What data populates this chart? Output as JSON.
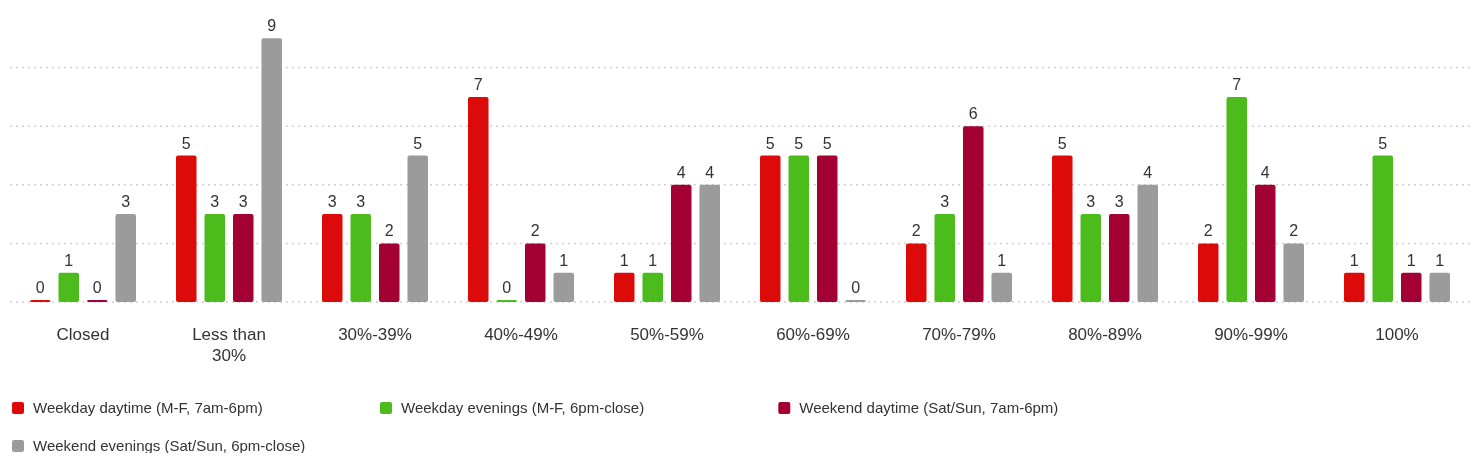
{
  "chart_data": {
    "type": "bar",
    "categories": [
      "Closed",
      "Less than 30%",
      "30%-39%",
      "40%-49%",
      "50%-59%",
      "60%-69%",
      "70%-79%",
      "80%-89%",
      "90%-99%",
      "100%"
    ],
    "series": [
      {
        "name": "Weekday daytime (M-F, 7am-6pm)",
        "color": "#dd0a0a",
        "values": [
          0,
          5,
          3,
          7,
          1,
          5,
          2,
          5,
          2,
          1
        ]
      },
      {
        "name": "Weekday evenings (M-F, 6pm-close)",
        "color": "#4cbc1c",
        "values": [
          1,
          3,
          3,
          0,
          1,
          5,
          3,
          3,
          7,
          5
        ]
      },
      {
        "name": "Weekend daytime (Sat/Sun, 7am-6pm)",
        "color": "#a30034",
        "values": [
          0,
          3,
          2,
          2,
          4,
          5,
          6,
          3,
          4,
          1
        ]
      },
      {
        "name": "Weekend evenings (Sat/Sun, 6pm-close)",
        "color": "#9b9b9b",
        "values": [
          3,
          9,
          5,
          1,
          4,
          0,
          1,
          4,
          2,
          1
        ]
      }
    ],
    "yticks": [
      {
        "value": 0,
        "label": null
      },
      {
        "value": 2,
        "label": null
      },
      {
        "value": 4,
        "label": null
      },
      {
        "value": 6,
        "label": null
      },
      {
        "value": 8,
        "label": null
      }
    ],
    "grid": "y",
    "data_labels": true,
    "legend": "bottom left",
    "tick_labels": "x"
  }
}
